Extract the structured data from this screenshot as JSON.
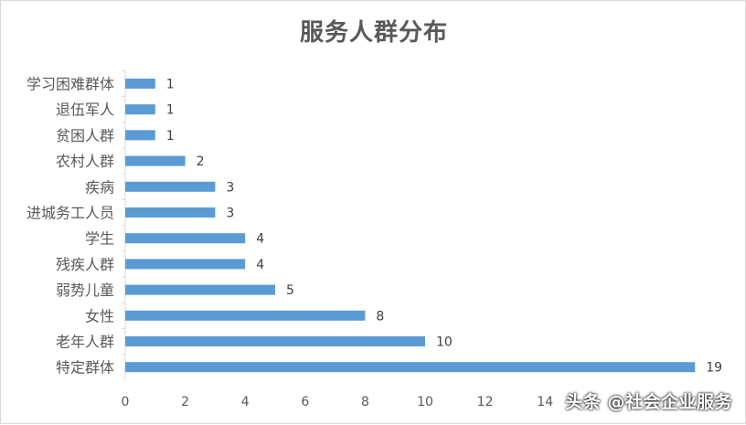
{
  "chart_data": {
    "type": "bar",
    "orientation": "horizontal",
    "title": "服务人群分布",
    "categories": [
      "学习困难群体",
      "退伍军人",
      "贫困人群",
      "农村人群",
      "疾病",
      "进城务工人员",
      "学生",
      "残疾人群",
      "弱势儿童",
      "女性",
      "老年人群",
      "特定群体"
    ],
    "values": [
      1,
      1,
      1,
      2,
      3,
      3,
      4,
      4,
      5,
      8,
      10,
      19
    ],
    "xlim": [
      0,
      20
    ],
    "x_ticks": [
      0,
      2,
      4,
      6,
      8,
      10,
      12,
      14
    ],
    "grid": false,
    "legend": "none",
    "bar_color": "#5b9bd5"
  },
  "watermark": "头条 @社会企业服务"
}
